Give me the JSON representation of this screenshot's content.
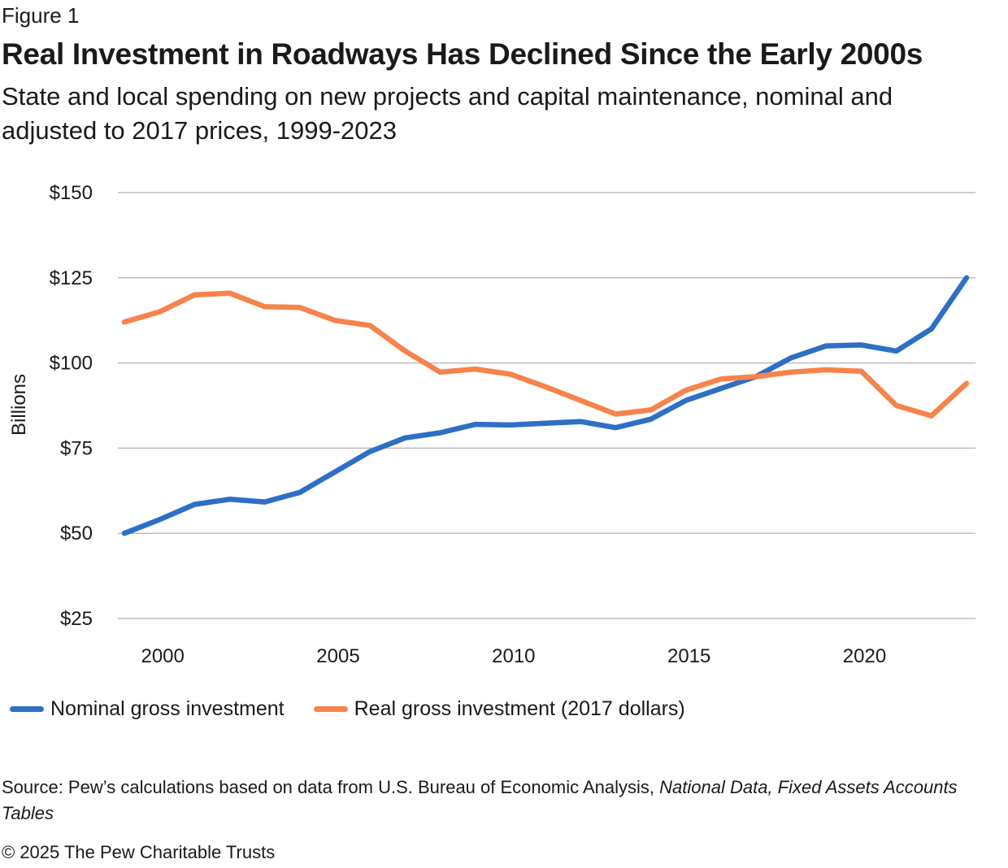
{
  "header": {
    "figure_label": "Figure 1",
    "title": "Real Investment in Roadways Has Declined Since the Early 2000s",
    "subtitle": "State and local spending on new projects and capital maintenance, nominal and adjusted to 2017 prices, 1999-2023"
  },
  "footer": {
    "source_prefix": "Source: Pew’s calculations based on data from U.S. Bureau of Economic Analysis, ",
    "source_italic": "National Data, Fixed Assets Accounts Tables",
    "copyright": "© 2025 The Pew Charitable Trusts"
  },
  "colors": {
    "nominal": "#2e6fc6",
    "real": "#f7834b",
    "grid": "#bdbdbd"
  },
  "chart_data": {
    "type": "line",
    "title": "Real Investment in Roadways Has Declined Since the Early 2000s",
    "ylabel": "Billions",
    "xlabel": "",
    "ylim": [
      25,
      150
    ],
    "xlim": [
      1999,
      2023
    ],
    "yticks": [
      25,
      50,
      75,
      100,
      125,
      150
    ],
    "ytick_labels": [
      "$25",
      "$50",
      "$75",
      "$100",
      "$125",
      "$150"
    ],
    "xticks": [
      2000,
      2005,
      2010,
      2015,
      2020
    ],
    "xtick_labels": [
      "2000",
      "2005",
      "2010",
      "2015",
      "2020"
    ],
    "grid": true,
    "legend_position": "bottom",
    "x": [
      1999,
      2000,
      2001,
      2002,
      2003,
      2004,
      2005,
      2006,
      2007,
      2008,
      2009,
      2010,
      2011,
      2012,
      2013,
      2014,
      2015,
      2016,
      2017,
      2018,
      2019,
      2020,
      2021,
      2022,
      2023
    ],
    "series": [
      {
        "name": "Nominal gross investment",
        "color": "#2e6fc6",
        "values": [
          50,
          54,
          58.5,
          60,
          59.2,
          62,
          68,
          74,
          78,
          79.5,
          82,
          81.8,
          82.3,
          82.8,
          81,
          83.5,
          89,
          92.5,
          96,
          101.5,
          105,
          105.3,
          103.5,
          110,
          125
        ]
      },
      {
        "name": "Real gross investment (2017 dollars)",
        "color": "#f7834b",
        "values": [
          112,
          115,
          120,
          120.5,
          116.5,
          116.3,
          112.5,
          111,
          103.5,
          97.3,
          98.2,
          96.7,
          93,
          89,
          85,
          86.2,
          92,
          95.3,
          96,
          97.3,
          98,
          97.6,
          87.5,
          84.5,
          94
        ]
      }
    ]
  }
}
